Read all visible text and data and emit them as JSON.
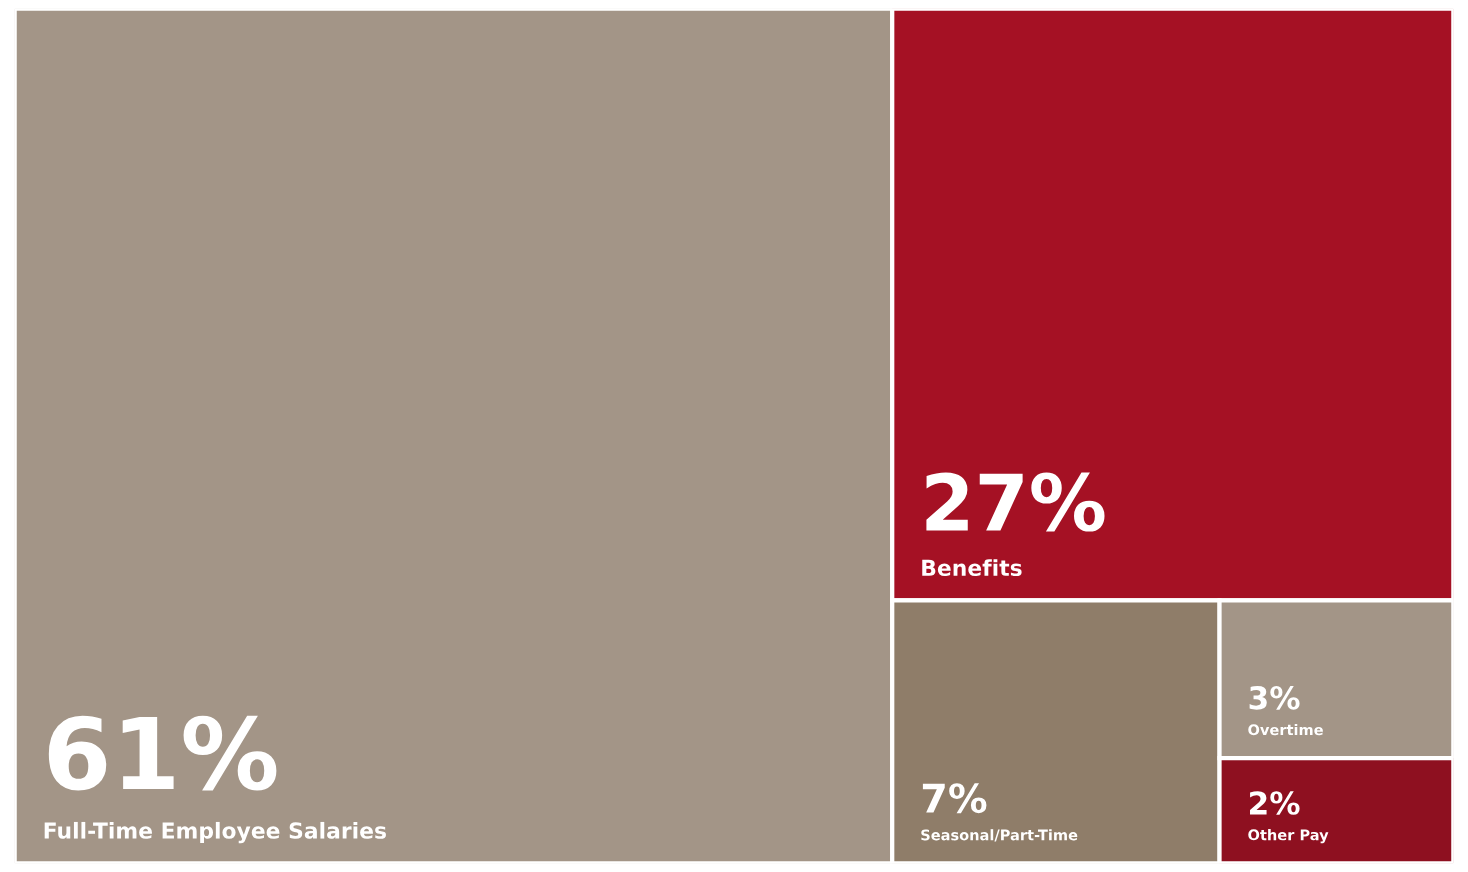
{
  "chart_data": {
    "type": "other",
    "categories": [
      "Full-Time Employee Salaries",
      "Benefits",
      "Seasonal/Part-Time",
      "Overtime",
      "Other Pay"
    ],
    "values": [
      61,
      27,
      7,
      3,
      2
    ],
    "value_labels": [
      "61%",
      "27%",
      "7%",
      "3%",
      "2%"
    ],
    "colors": [
      "#a39587",
      "#a51124",
      "#8f7d69",
      "#a39587",
      "#8e1020"
    ]
  }
}
